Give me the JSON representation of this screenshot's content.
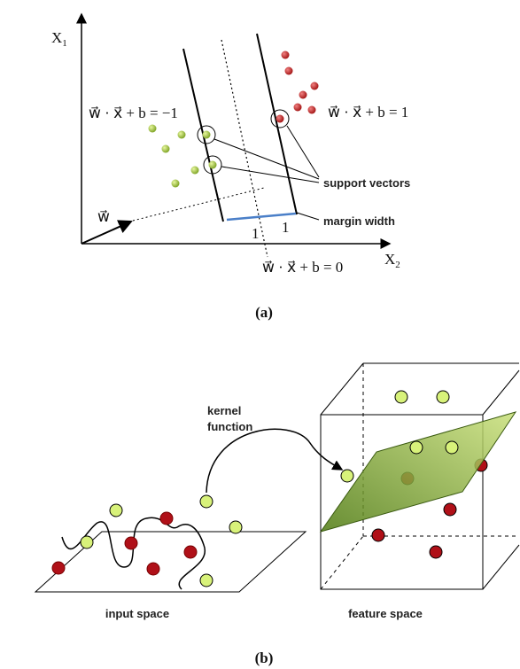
{
  "part_a": {
    "axis_x1": {
      "main": "X",
      "sub": "1"
    },
    "axis_x2": {
      "main": "X",
      "sub": "2"
    },
    "equation_negative": "w⃗ · x⃗ + b = −1",
    "equation_positive": "w⃗ · x⃗ + b = 1",
    "equation_zero": "w⃗ · x⃗ + b = 0",
    "weight_vector": "w⃗",
    "support_vectors": "support vectors",
    "margin_width": "margin width",
    "unit_left": "1",
    "unit_right": "1",
    "caption": "(a)"
  },
  "part_b": {
    "kernel_function": [
      "kernel",
      "function"
    ],
    "input_space": "input space",
    "feature_space": "feature space",
    "caption": "(b)"
  }
}
